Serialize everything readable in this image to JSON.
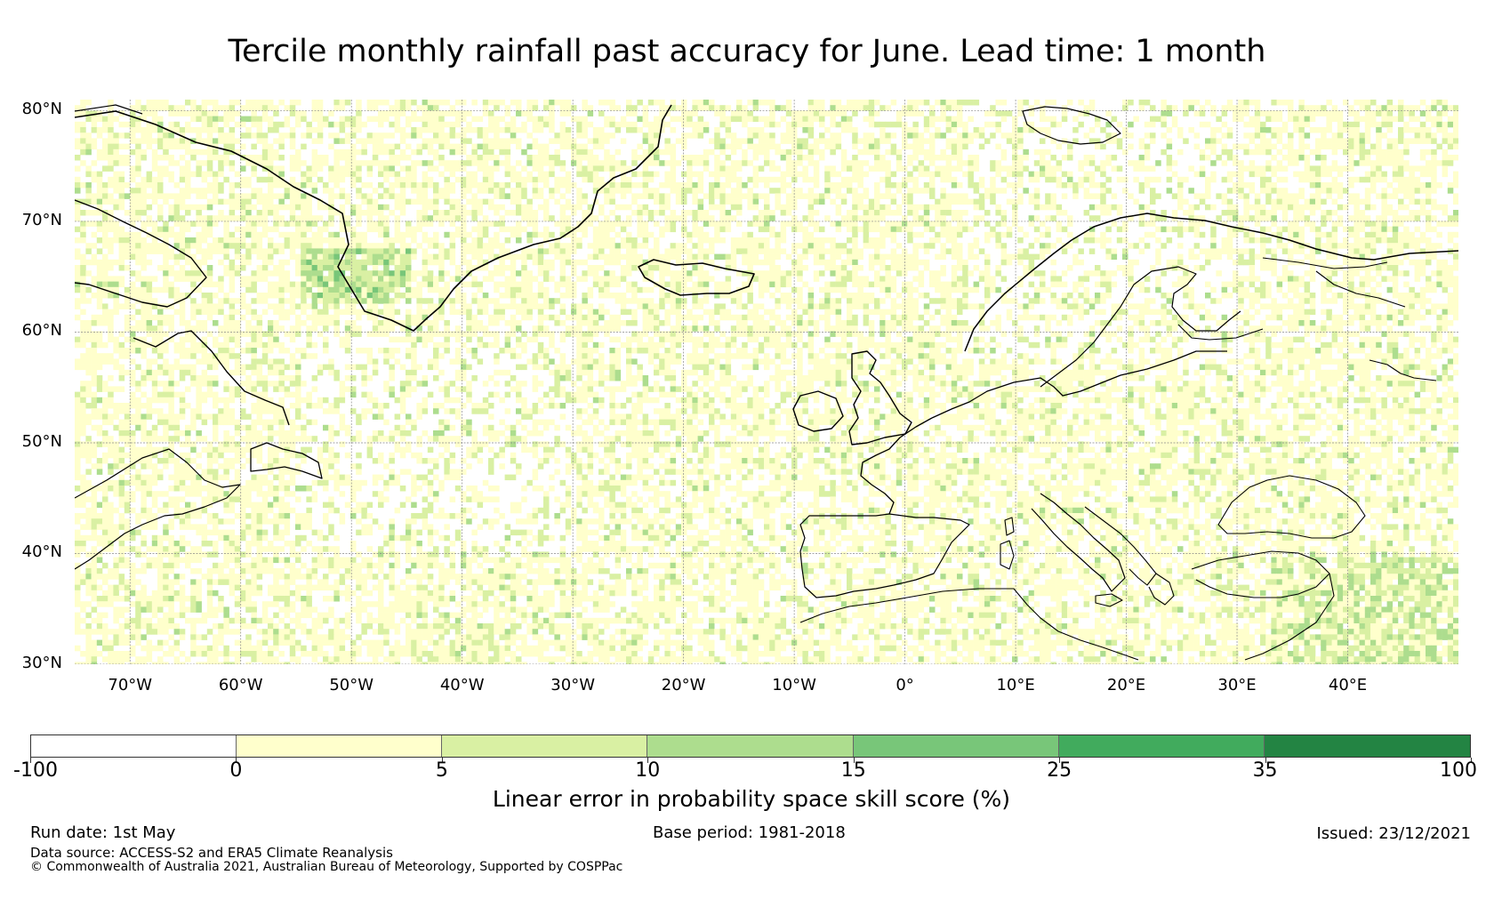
{
  "title": "Tercile monthly rainfall past accuracy for June. Lead time: 1 month",
  "map": {
    "lon_range": [
      -75,
      50
    ],
    "lat_range": [
      30,
      81
    ],
    "lat_ticks": [
      "80°N",
      "70°N",
      "60°N",
      "50°N",
      "40°N",
      "30°N"
    ],
    "lon_ticks": [
      "70°W",
      "60°W",
      "50°W",
      "40°W",
      "30°W",
      "20°W",
      "10°W",
      "0°",
      "10°E",
      "20°E",
      "30°E",
      "40°E"
    ]
  },
  "colorbar": {
    "title": "Linear error in probability space skill score (%)",
    "tick_labels": [
      "-100",
      "0",
      "5",
      "10",
      "15",
      "25",
      "35",
      "100"
    ],
    "colors": [
      "#ffffff",
      "#ffffcc",
      "#d9f0a3",
      "#addd8e",
      "#78c679",
      "#41ab5d",
      "#238443"
    ]
  },
  "footer": {
    "run_date": "Run date: 1st May",
    "base_period": "Base period: 1981-2018",
    "issued": "Issued: 23/12/2021",
    "data_source": "Data source: ACCESS-S2 and ERA5 Climate Reanalysis",
    "copyright": "© Commonwealth of Australia 2021, Australian Bureau of Meteorology, Supported by COSPPac"
  }
}
